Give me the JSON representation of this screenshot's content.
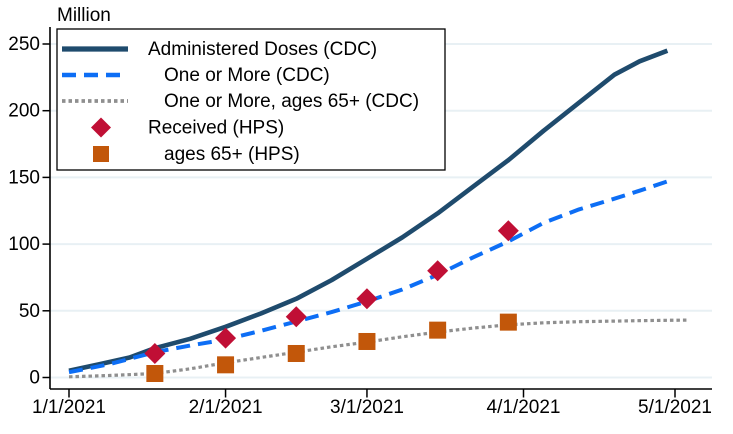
{
  "chart_data": {
    "type": "line",
    "unit_label": "Million",
    "x_unit": "days since 1/1/2021",
    "x_tick_labels": [
      "1/1/2021",
      "2/1/2021",
      "3/1/2021",
      "4/1/2021",
      "5/1/2021"
    ],
    "x_tick_days": [
      0,
      31,
      59,
      90,
      120
    ],
    "y_tick_labels": [
      "0",
      "50",
      "100",
      "150",
      "200",
      "250"
    ],
    "y_ticks": [
      0,
      50,
      100,
      150,
      200,
      250
    ],
    "ylim": [
      0,
      250
    ],
    "grid": true,
    "legend_position": "top-left",
    "colors": {
      "gridline": "#e8f0f4",
      "axis": "#000000",
      "background": "#ffffff",
      "legend_border": "#000000"
    },
    "series": [
      {
        "id": "administered-doses-cdc",
        "name": "Administered Doses (CDC)",
        "kind": "line",
        "style": "solid",
        "color": "#1f4b6d",
        "width": 4.6,
        "points": [
          [
            0,
            5
          ],
          [
            6,
            10
          ],
          [
            12,
            15
          ],
          [
            17,
            22
          ],
          [
            24,
            29
          ],
          [
            31,
            38
          ],
          [
            38,
            48
          ],
          [
            45,
            59
          ],
          [
            52,
            73
          ],
          [
            59,
            89
          ],
          [
            66,
            105
          ],
          [
            73,
            123
          ],
          [
            80,
            143
          ],
          [
            87,
            163
          ],
          [
            94,
            185
          ],
          [
            101,
            206
          ],
          [
            108,
            227
          ],
          [
            113,
            237
          ],
          [
            118.5,
            245
          ]
        ]
      },
      {
        "id": "one-or-more-cdc",
        "name": "One or More (CDC)",
        "kind": "line",
        "style": "dashed",
        "color": "#0d6ef5",
        "width": 4,
        "points": [
          [
            0,
            4
          ],
          [
            8,
            10
          ],
          [
            17,
            19
          ],
          [
            24,
            24
          ],
          [
            31,
            28.5
          ],
          [
            38,
            35
          ],
          [
            45,
            42
          ],
          [
            52,
            49
          ],
          [
            59,
            57
          ],
          [
            66,
            66
          ],
          [
            73,
            77
          ],
          [
            80,
            90
          ],
          [
            87,
            102
          ],
          [
            94,
            116
          ],
          [
            101,
            126
          ],
          [
            108,
            134
          ],
          [
            113,
            140
          ],
          [
            118.5,
            147
          ]
        ]
      },
      {
        "id": "one-or-more-65plus-cdc",
        "name": "One or More, ages 65+  (CDC)",
        "kind": "line",
        "style": "dotted",
        "color": "#8f8f8f",
        "width": 3.2,
        "points": [
          [
            0,
            0.5
          ],
          [
            8,
            1.5
          ],
          [
            17,
            3
          ],
          [
            24,
            6.5
          ],
          [
            31,
            11
          ],
          [
            38,
            15
          ],
          [
            45,
            19
          ],
          [
            52,
            23
          ],
          [
            59,
            26.5
          ],
          [
            66,
            30.5
          ],
          [
            73,
            34
          ],
          [
            80,
            37
          ],
          [
            87,
            39.5
          ],
          [
            94,
            41
          ],
          [
            101,
            41.8
          ],
          [
            108,
            42.3
          ],
          [
            115,
            42.7
          ],
          [
            122.5,
            43
          ]
        ]
      },
      {
        "id": "received-hps",
        "name": "Received (HPS)",
        "kind": "scatter",
        "marker": "diamond",
        "color": "#c00f35",
        "size": 10.5,
        "points": [
          [
            17,
            18
          ],
          [
            31,
            29.5
          ],
          [
            45,
            45.5
          ],
          [
            59,
            59
          ],
          [
            73,
            80
          ],
          [
            87,
            110
          ]
        ]
      },
      {
        "id": "ages-65plus-hps",
        "name": "ages 65+ (HPS)",
        "kind": "scatter",
        "marker": "square",
        "color": "#c2570a",
        "size": 8.5,
        "points": [
          [
            17,
            3
          ],
          [
            31,
            9.5
          ],
          [
            45,
            18
          ],
          [
            59,
            27
          ],
          [
            73,
            35.5
          ],
          [
            87,
            41.5
          ]
        ]
      }
    ]
  }
}
